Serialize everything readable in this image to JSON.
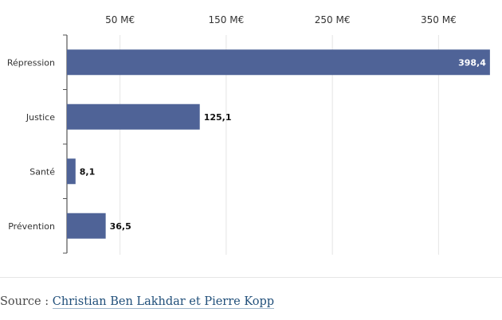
{
  "chart_data": {
    "type": "bar",
    "orientation": "horizontal",
    "categories": [
      "Répression",
      "Justice",
      "Santé",
      "Prévention"
    ],
    "values": [
      398.4,
      125.1,
      8.1,
      36.5
    ],
    "value_labels": [
      "398,4",
      "125,1",
      "8,1",
      "36,5"
    ],
    "x_ticks": [
      50,
      150,
      250,
      350
    ],
    "x_tick_labels": [
      "50 M€",
      "150 M€",
      "250 M€",
      "350 M€"
    ],
    "xlim": [
      0,
      400
    ],
    "tick_position": "top",
    "grid": true,
    "bar_color": "#4f6397",
    "title": "",
    "xlabel": "",
    "ylabel": ""
  },
  "source": {
    "prefix": "Source : ",
    "link_text": "Christian Ben Lakhdar et Pierre Kopp"
  }
}
